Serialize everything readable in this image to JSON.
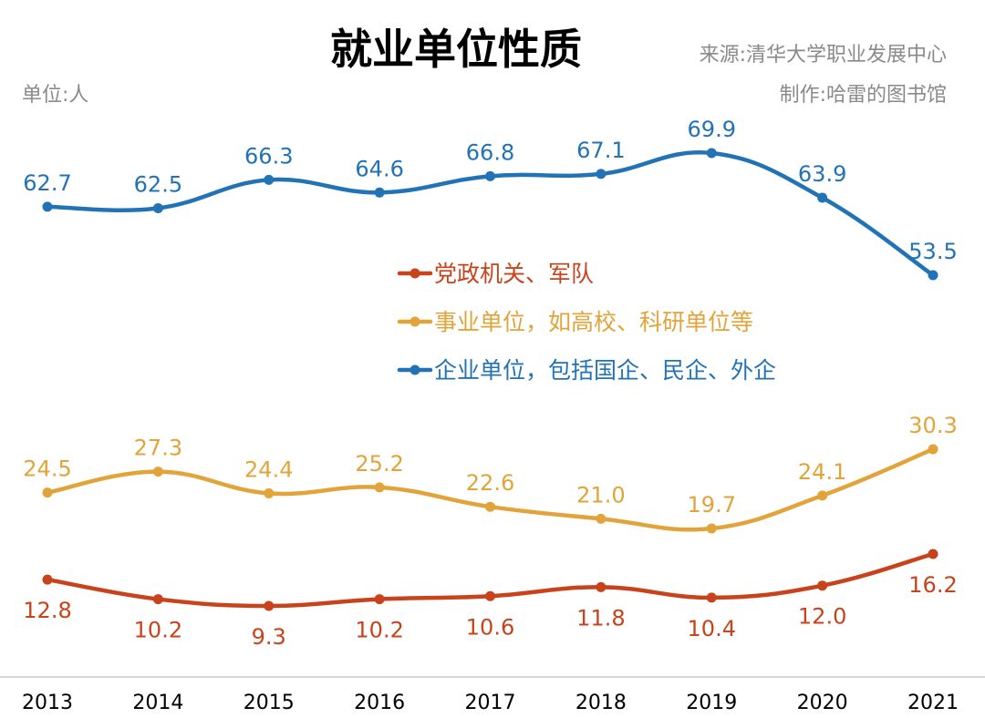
{
  "header": {
    "title": "就业单位性质",
    "source": "来源:清华大学职业发展中心",
    "unit": "单位:人",
    "maker": "制作:哈雷的图书馆"
  },
  "chart_data": {
    "type": "line",
    "title": "就业单位性质",
    "xlabel": "",
    "ylabel": "",
    "categories": [
      "2013",
      "2014",
      "2015",
      "2016",
      "2017",
      "2018",
      "2019",
      "2020",
      "2021"
    ],
    "series": [
      {
        "name": "党政机关、军队",
        "color": "#c8431b",
        "label_pos": "below",
        "values": [
          12.8,
          10.2,
          9.3,
          10.2,
          10.6,
          11.8,
          10.4,
          12.0,
          16.2
        ],
        "labels": [
          "12.8",
          "10.2",
          "9.3",
          "10.2",
          "10.6",
          "11.8",
          "10.4",
          "12.0",
          "16.2"
        ]
      },
      {
        "name": "事业单位，如高校、科研单位等",
        "color": "#e2a43a",
        "label_pos": "above",
        "values": [
          24.5,
          27.3,
          24.4,
          25.2,
          22.6,
          21.0,
          19.7,
          24.1,
          30.3
        ],
        "labels": [
          "24.5",
          "27.3",
          "24.4",
          "25.2",
          "22.6",
          "21.0",
          "19.7",
          "24.1",
          "30.3"
        ]
      },
      {
        "name": "企业单位，包括国企、民企、外企",
        "color": "#2273b5",
        "label_pos": "above",
        "values": [
          62.7,
          62.5,
          66.3,
          64.6,
          66.8,
          67.1,
          69.9,
          63.9,
          53.5
        ],
        "labels": [
          "62.7",
          "62.5",
          "66.3",
          "64.6",
          "66.8",
          "67.1",
          "69.9",
          "63.9",
          "53.5"
        ]
      }
    ],
    "legend_order": [
      0,
      1,
      2
    ],
    "legend_placement": "center",
    "grid": false,
    "baseline": true
  }
}
